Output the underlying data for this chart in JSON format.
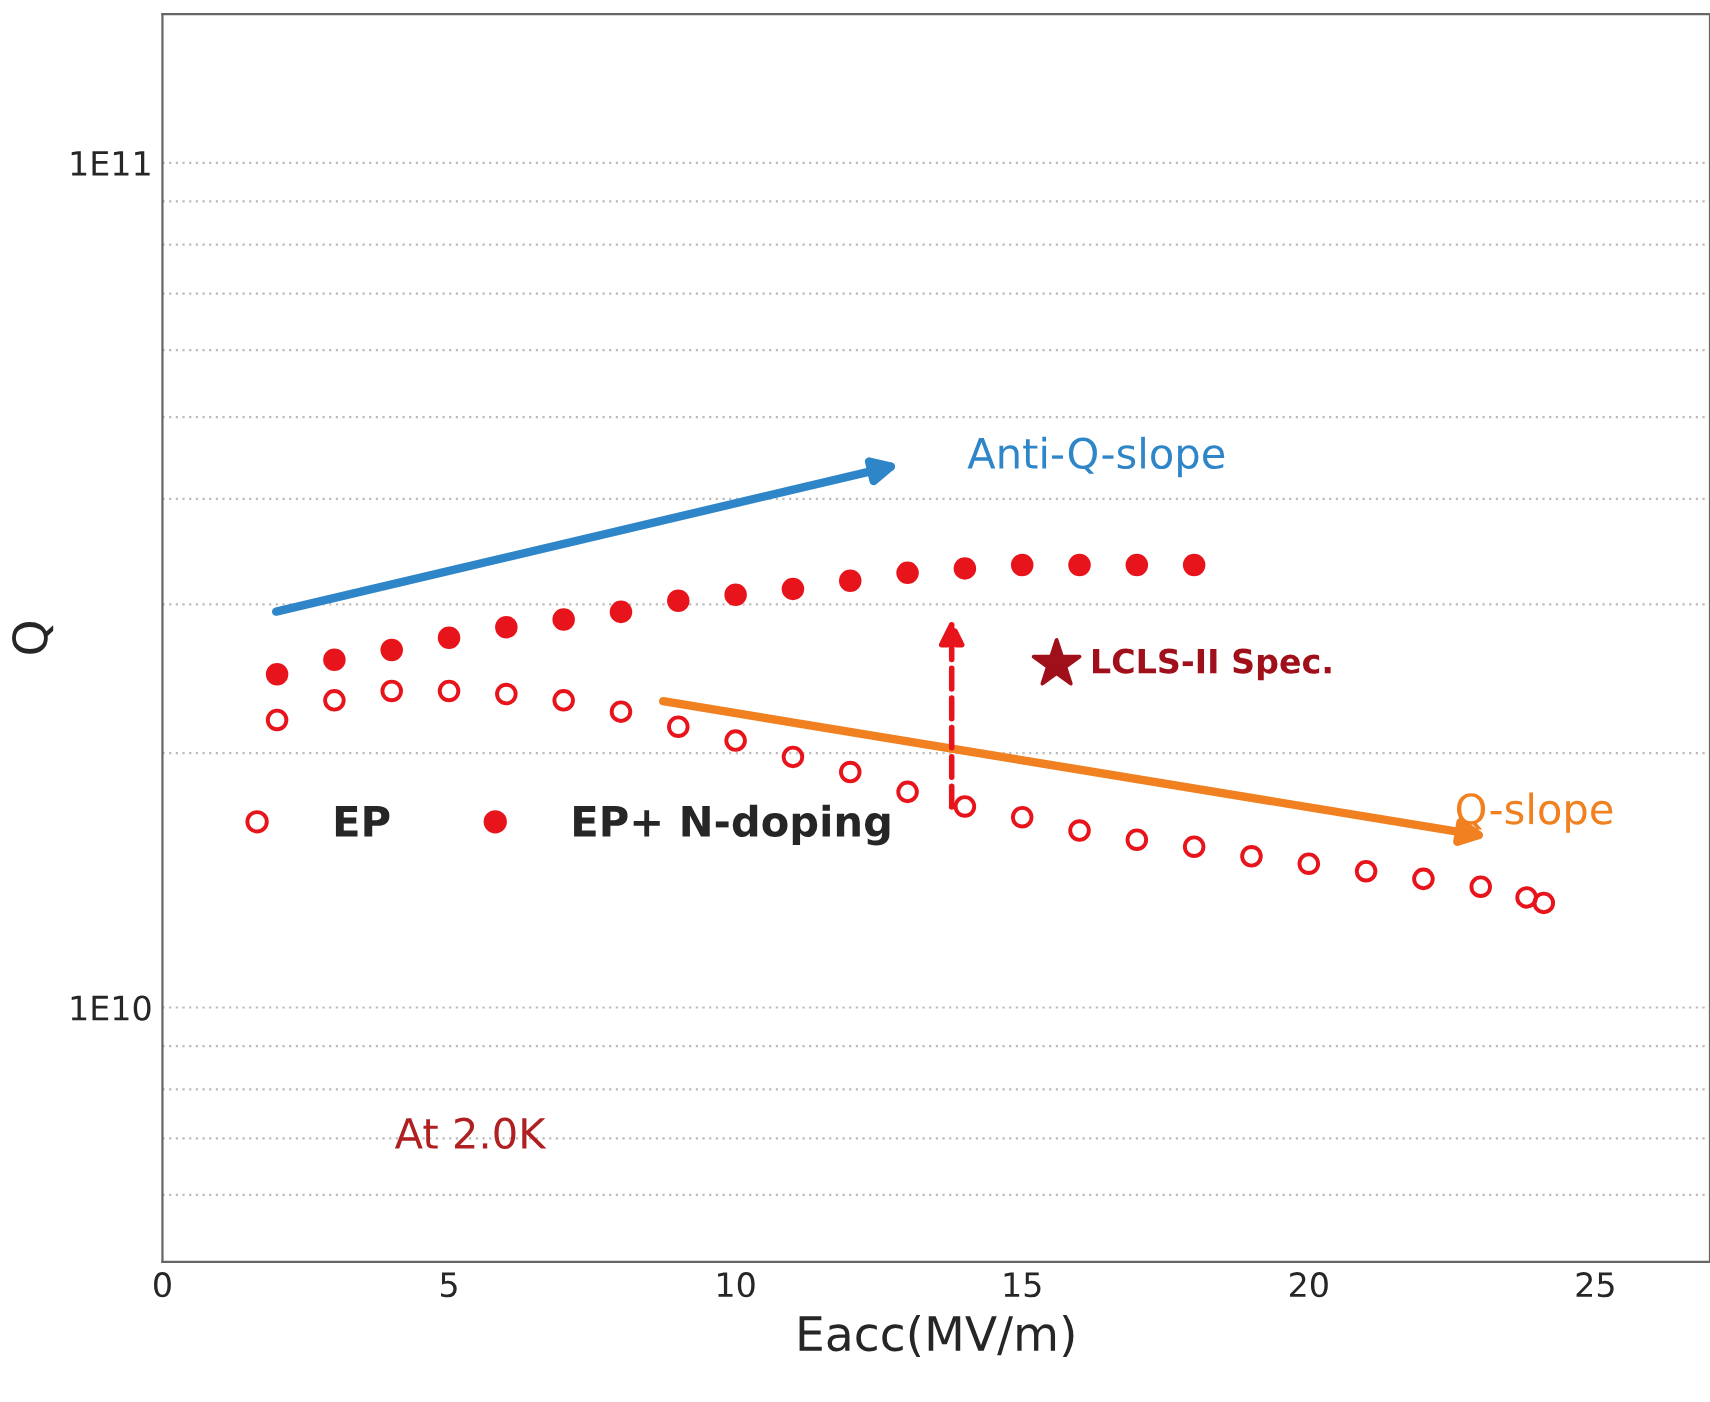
{
  "chart_data": {
    "type": "scatter",
    "xlabel": "Eacc(MV/m)",
    "ylabel": "Q",
    "log": "y",
    "xlim": [
      0,
      27
    ],
    "xticks": [
      0,
      5,
      10,
      15,
      20,
      25
    ],
    "ylim": [
      5000000000.0,
      150000000000.0
    ],
    "yticks": [
      {
        "value": 6000000000.0,
        "label": null
      },
      {
        "value": 7000000000.0,
        "label": null
      },
      {
        "value": 8000000000.0,
        "label": null
      },
      {
        "value": 9000000000.0,
        "label": null
      },
      {
        "value": 10000000000.0,
        "label": "1E10"
      },
      {
        "value": 20000000000.0,
        "label": null
      },
      {
        "value": 30000000000.0,
        "label": null
      },
      {
        "value": 40000000000.0,
        "label": null
      },
      {
        "value": 50000000000.0,
        "label": null
      },
      {
        "value": 60000000000.0,
        "label": null
      },
      {
        "value": 70000000000.0,
        "label": null
      },
      {
        "value": 80000000000.0,
        "label": null
      },
      {
        "value": 90000000000.0,
        "label": null
      },
      {
        "value": 100000000000.0,
        "label": "1E11"
      }
    ],
    "grid": "y",
    "legend": "left",
    "marker": "circle",
    "series": [
      {
        "name": "EP",
        "color": "#e8141c",
        "x": [
          2,
          3,
          4,
          5,
          6,
          7,
          8,
          9,
          10,
          11,
          12,
          13,
          14,
          15,
          16,
          17,
          18,
          19,
          20,
          21,
          22,
          23,
          23.8,
          24.1
        ],
        "values": [
          21900000000.0,
          23100000000.0,
          23700000000.0,
          23700000000.0,
          23500000000.0,
          23100000000.0,
          22400000000.0,
          21500000000.0,
          20700000000.0,
          19800000000.0,
          19000000000.0,
          18000000000.0,
          17300000000.0,
          16800000000.0,
          16200000000.0,
          15800000000.0,
          15500000000.0,
          15100000000.0,
          14800000000.0,
          14500000000.0,
          14200000000.0,
          13900000000.0,
          13500000000.0,
          13300000000.0
        ]
      },
      {
        "name": "EP+ N-doping",
        "color": "#e8141c",
        "x": [
          2,
          3,
          4,
          5,
          6,
          7,
          8,
          9,
          10,
          11,
          12,
          13,
          14,
          15,
          16,
          17,
          18
        ],
        "values": [
          24800000000.0,
          25800000000.0,
          26500000000.0,
          27400000000.0,
          28200000000.0,
          28800000000.0,
          29400000000.0,
          30300000000.0,
          30800000000.0,
          31300000000.0,
          32000000000.0,
          32700000000.0,
          33100000000.0,
          33400000000.0,
          33400000000.0,
          33400000000.0,
          33400000000.0
        ]
      },
      {
        "name": "LCLS-II Spec.",
        "color": "#a0101a",
        "marker": "star",
        "x": [
          15.6
        ],
        "values": [
          25500000000.0
        ]
      }
    ],
    "annotations": [
      "Anti-Q-slope",
      "Q-slope",
      "At 2.0K"
    ]
  }
}
